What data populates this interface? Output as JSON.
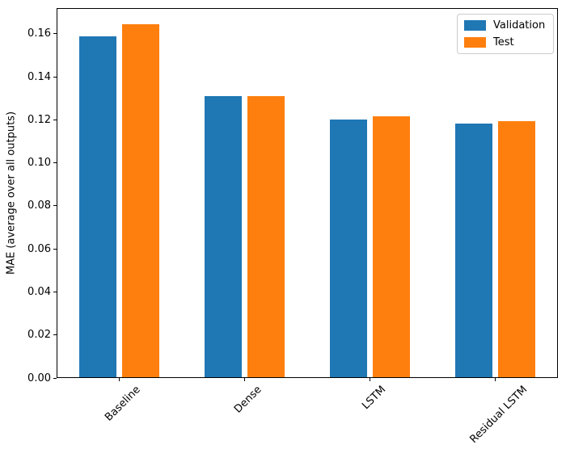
{
  "chart_data": {
    "type": "bar",
    "title": "",
    "xlabel": "",
    "ylabel": "MAE (average over all outputs)",
    "categories": [
      "Baseline",
      "Dense",
      "LSTM",
      "Residual LSTM"
    ],
    "series": [
      {
        "name": "Validation",
        "color": "#1f77b4",
        "values": [
          0.1589,
          0.1311,
          0.1201,
          0.1183
        ]
      },
      {
        "name": "Test",
        "color": "#ff7f0e",
        "values": [
          0.1644,
          0.1312,
          0.1216,
          0.1194
        ]
      }
    ],
    "yticks": [
      0.0,
      0.02,
      0.04,
      0.06,
      0.08,
      0.1,
      0.12,
      0.14,
      0.16
    ],
    "ytick_labels": [
      "0.00",
      "0.02",
      "0.04",
      "0.06",
      "0.08",
      "0.10",
      "0.12",
      "0.14",
      "0.16"
    ],
    "ylim": [
      0,
      0.172
    ],
    "xtick_rotation": 45,
    "bar_width_ratio": 0.3,
    "bar_offset_ratio": 0.17,
    "grid": false,
    "legend": {
      "position": "upper right",
      "entries": [
        "Validation",
        "Test"
      ]
    },
    "colors": {
      "validation": "#1f77b4",
      "test": "#ff7f0e",
      "spine": "#000000",
      "background": "#ffffff",
      "legend_border": "#cccccc"
    }
  }
}
